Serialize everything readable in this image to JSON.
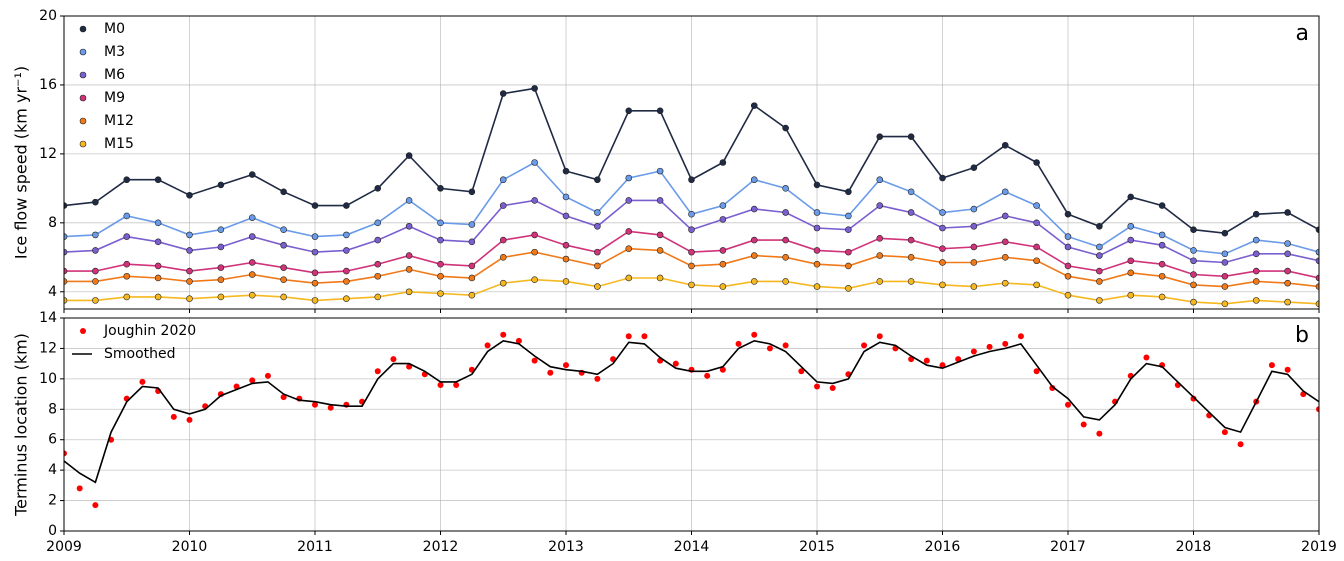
{
  "chart_data": [
    {
      "type": "scatter_line",
      "panel_label": "a",
      "ylabel": "Ice flow speed (km yr⁻¹)",
      "xlim": [
        2009,
        2019
      ],
      "xticks": [
        2009,
        2010,
        2011,
        2012,
        2013,
        2014,
        2015,
        2016,
        2017,
        2018,
        2019
      ],
      "xtick_labels": false,
      "ylim": [
        3,
        20
      ],
      "yticks": [
        4,
        8,
        12,
        16,
        20
      ],
      "grid": true,
      "legend": "upper left",
      "x": [
        2009,
        2009.25,
        2009.5,
        2009.75,
        2010,
        2010.25,
        2010.5,
        2010.75,
        2011,
        2011.25,
        2011.5,
        2011.75,
        2012,
        2012.25,
        2012.5,
        2012.75,
        2013,
        2013.25,
        2013.5,
        2013.75,
        2014,
        2014.25,
        2014.5,
        2014.75,
        2015,
        2015.25,
        2015.5,
        2015.75,
        2016,
        2016.25,
        2016.5,
        2016.75,
        2017,
        2017.25,
        2017.5,
        2017.75,
        2018,
        2018.25,
        2018.5,
        2018.75,
        2019
      ],
      "series": [
        {
          "name": "M0",
          "color": "#1f2a44",
          "mode": "markers+line",
          "values": [
            9.0,
            9.2,
            10.5,
            10.5,
            9.6,
            10.2,
            10.8,
            9.8,
            9.0,
            9.0,
            10.0,
            11.9,
            10.0,
            9.8,
            15.5,
            15.8,
            11.0,
            10.5,
            14.5,
            14.5,
            10.5,
            11.5,
            14.8,
            13.5,
            10.2,
            9.8,
            13.0,
            13.0,
            10.6,
            11.2,
            12.5,
            11.5,
            8.5,
            7.8,
            9.5,
            9.0,
            7.6,
            7.4,
            8.5,
            8.6,
            7.6
          ]
        },
        {
          "name": "M3",
          "color": "#6a9be8",
          "mode": "markers+line",
          "values": [
            7.2,
            7.3,
            8.4,
            8.0,
            7.3,
            7.6,
            8.3,
            7.6,
            7.2,
            7.3,
            8.0,
            9.3,
            8.0,
            7.9,
            10.5,
            11.5,
            9.5,
            8.6,
            10.6,
            11.0,
            8.5,
            9.0,
            10.5,
            10.0,
            8.6,
            8.4,
            10.5,
            9.8,
            8.6,
            8.8,
            9.8,
            9.0,
            7.2,
            6.6,
            7.8,
            7.3,
            6.4,
            6.2,
            7.0,
            6.8,
            6.3
          ]
        },
        {
          "name": "M6",
          "color": "#7b5fd0",
          "mode": "markers+line",
          "values": [
            6.3,
            6.4,
            7.2,
            6.9,
            6.4,
            6.6,
            7.2,
            6.7,
            6.3,
            6.4,
            7.0,
            7.8,
            7.0,
            6.9,
            9.0,
            9.3,
            8.4,
            7.8,
            9.3,
            9.3,
            7.6,
            8.2,
            8.8,
            8.6,
            7.7,
            7.6,
            9.0,
            8.6,
            7.7,
            7.8,
            8.4,
            8.0,
            6.6,
            6.1,
            7.0,
            6.7,
            5.8,
            5.7,
            6.2,
            6.2,
            5.8
          ]
        },
        {
          "name": "M9",
          "color": "#d0337a",
          "mode": "markers+line",
          "values": [
            5.2,
            5.2,
            5.6,
            5.5,
            5.2,
            5.4,
            5.7,
            5.4,
            5.1,
            5.2,
            5.6,
            6.1,
            5.6,
            5.5,
            7.0,
            7.3,
            6.7,
            6.3,
            7.5,
            7.3,
            6.3,
            6.4,
            7.0,
            7.0,
            6.4,
            6.3,
            7.1,
            7.0,
            6.5,
            6.6,
            6.9,
            6.6,
            5.5,
            5.2,
            5.8,
            5.6,
            5.0,
            4.9,
            5.2,
            5.2,
            4.8
          ]
        },
        {
          "name": "M12",
          "color": "#f07a1a",
          "mode": "markers+line",
          "values": [
            4.6,
            4.6,
            4.9,
            4.8,
            4.6,
            4.7,
            5.0,
            4.7,
            4.5,
            4.6,
            4.9,
            5.3,
            4.9,
            4.8,
            6.0,
            6.3,
            5.9,
            5.5,
            6.5,
            6.4,
            5.5,
            5.6,
            6.1,
            6.0,
            5.6,
            5.5,
            6.1,
            6.0,
            5.7,
            5.7,
            6.0,
            5.8,
            4.9,
            4.6,
            5.1,
            4.9,
            4.4,
            4.3,
            4.6,
            4.5,
            4.3
          ]
        },
        {
          "name": "M15",
          "color": "#f5b820",
          "mode": "markers+line",
          "values": [
            3.5,
            3.5,
            3.7,
            3.7,
            3.6,
            3.7,
            3.8,
            3.7,
            3.5,
            3.6,
            3.7,
            4.0,
            3.9,
            3.8,
            4.5,
            4.7,
            4.6,
            4.3,
            4.8,
            4.8,
            4.4,
            4.3,
            4.6,
            4.6,
            4.3,
            4.2,
            4.6,
            4.6,
            4.4,
            4.3,
            4.5,
            4.4,
            3.8,
            3.5,
            3.8,
            3.7,
            3.4,
            3.3,
            3.5,
            3.4,
            3.3
          ]
        }
      ]
    },
    {
      "type": "scatter_line",
      "panel_label": "b",
      "ylabel": "Terminus location (km)",
      "xlim": [
        2009,
        2019
      ],
      "xticks": [
        2009,
        2010,
        2011,
        2012,
        2013,
        2014,
        2015,
        2016,
        2017,
        2018,
        2019
      ],
      "xtick_labels": true,
      "ylim": [
        0,
        14
      ],
      "yticks": [
        0,
        2,
        4,
        6,
        8,
        10,
        12,
        14
      ],
      "grid": true,
      "legend": "upper left",
      "x": [
        2009,
        2009.125,
        2009.25,
        2009.375,
        2009.5,
        2009.625,
        2009.75,
        2009.875,
        2010,
        2010.125,
        2010.25,
        2010.375,
        2010.5,
        2010.625,
        2010.75,
        2010.875,
        2011,
        2011.125,
        2011.25,
        2011.375,
        2011.5,
        2011.625,
        2011.75,
        2011.875,
        2012,
        2012.125,
        2012.25,
        2012.375,
        2012.5,
        2012.625,
        2012.75,
        2012.875,
        2013,
        2013.125,
        2013.25,
        2013.375,
        2013.5,
        2013.625,
        2013.75,
        2013.875,
        2014,
        2014.125,
        2014.25,
        2014.375,
        2014.5,
        2014.625,
        2014.75,
        2014.875,
        2015,
        2015.125,
        2015.25,
        2015.375,
        2015.5,
        2015.625,
        2015.75,
        2015.875,
        2016,
        2016.125,
        2016.25,
        2016.375,
        2016.5,
        2016.625,
        2016.75,
        2016.875,
        2017,
        2017.125,
        2017.25,
        2017.375,
        2017.5,
        2017.625,
        2017.75,
        2017.875,
        2018,
        2018.125,
        2018.25,
        2018.375,
        2018.5,
        2018.625,
        2018.75,
        2018.875,
        2019
      ],
      "series": [
        {
          "name": "Joughin 2020",
          "color": "#ff0000",
          "mode": "markers",
          "values": [
            5.1,
            2.8,
            1.7,
            6.0,
            8.7,
            9.8,
            9.2,
            7.5,
            7.3,
            8.2,
            9.0,
            9.5,
            9.9,
            10.2,
            8.8,
            8.7,
            8.3,
            8.1,
            8.3,
            8.5,
            10.5,
            11.3,
            10.8,
            10.3,
            9.6,
            9.6,
            10.6,
            12.2,
            12.9,
            12.5,
            11.2,
            10.4,
            10.9,
            10.4,
            10.0,
            11.3,
            12.8,
            12.8,
            11.2,
            11.0,
            10.6,
            10.2,
            10.6,
            12.3,
            12.9,
            12.0,
            12.2,
            10.5,
            9.5,
            9.4,
            10.3,
            12.2,
            12.8,
            12.0,
            11.3,
            11.2,
            10.9,
            11.3,
            11.8,
            12.1,
            12.3,
            12.8,
            10.5,
            9.4,
            8.3,
            7.0,
            6.4,
            8.5,
            10.2,
            11.4,
            10.9,
            9.6,
            8.7,
            7.6,
            6.5,
            5.7,
            8.5,
            10.9,
            10.6,
            9.0,
            8.0
          ]
        },
        {
          "name": "Smoothed",
          "color": "#000000",
          "mode": "line",
          "values": [
            4.6,
            3.8,
            3.2,
            6.5,
            8.5,
            9.5,
            9.4,
            8.0,
            7.7,
            8.0,
            8.9,
            9.3,
            9.7,
            9.8,
            9.0,
            8.6,
            8.5,
            8.3,
            8.2,
            8.2,
            10.0,
            11.0,
            11.0,
            10.5,
            9.8,
            9.8,
            10.3,
            11.8,
            12.5,
            12.3,
            11.5,
            10.8,
            10.6,
            10.5,
            10.3,
            11.0,
            12.4,
            12.3,
            11.4,
            10.7,
            10.5,
            10.5,
            10.8,
            12.0,
            12.5,
            12.3,
            11.8,
            10.8,
            9.8,
            9.7,
            10.0,
            11.8,
            12.4,
            12.2,
            11.5,
            10.9,
            10.7,
            11.1,
            11.5,
            11.8,
            12.0,
            12.3,
            10.9,
            9.5,
            8.7,
            7.5,
            7.3,
            8.3,
            10.0,
            11.0,
            10.8,
            9.8,
            8.8,
            7.8,
            6.8,
            6.5,
            8.5,
            10.5,
            10.3,
            9.2,
            8.5
          ]
        }
      ]
    }
  ]
}
